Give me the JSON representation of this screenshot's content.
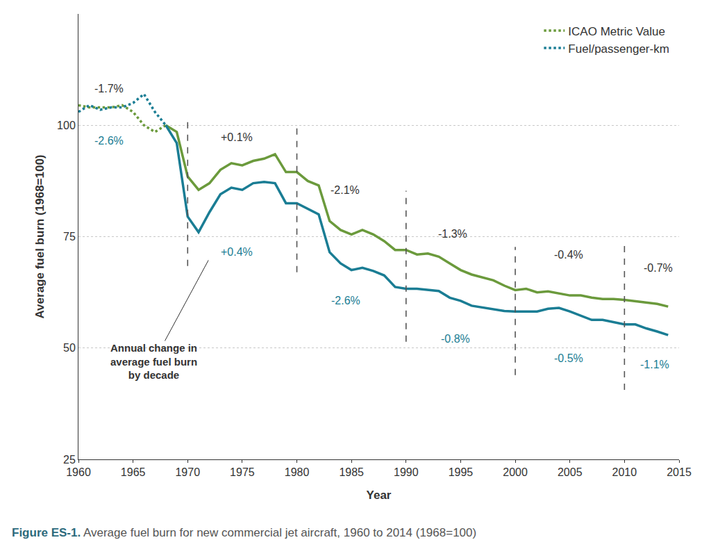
{
  "chart_data": {
    "type": "line",
    "title": "Figure ES-1. Average fuel burn for new commercial jet aircraft, 1960 to 2014 (1968=100)",
    "x_label": "Year",
    "y_label": "Average fuel burn (1968=100)",
    "x": [
      1960,
      1961,
      1962,
      1963,
      1964,
      1965,
      1966,
      1967,
      1968,
      1969,
      1970,
      1971,
      1972,
      1973,
      1974,
      1975,
      1976,
      1977,
      1978,
      1979,
      1980,
      1981,
      1982,
      1983,
      1984,
      1985,
      1986,
      1987,
      1988,
      1989,
      1990,
      1991,
      1992,
      1993,
      1994,
      1995,
      1996,
      1997,
      1998,
      1999,
      2000,
      2001,
      2002,
      2003,
      2004,
      2005,
      2006,
      2007,
      2008,
      2009,
      2010,
      2011,
      2012,
      2013,
      2014
    ],
    "series": [
      {
        "name": "ICAO Metric Value",
        "color": "#6b9a3c",
        "line_style": "dotted",
        "values": [
          104.5,
          104,
          104,
          104,
          104.5,
          103,
          100,
          98.5,
          100,
          null,
          null,
          null,
          null,
          null,
          null,
          null,
          null,
          null,
          null,
          null,
          null,
          null,
          null,
          null,
          null,
          null,
          null,
          null,
          null,
          null,
          null,
          null,
          null,
          null,
          null,
          null,
          null,
          null,
          null,
          null,
          null,
          null,
          null,
          null,
          null,
          null,
          null,
          null,
          null,
          null,
          null,
          null,
          null,
          null,
          null
        ]
      },
      {
        "name": "Fuel/passenger-km",
        "color": "#1a7d94",
        "line_style": "dotted",
        "values": [
          103,
          104.5,
          103.5,
          104,
          104,
          105,
          107,
          103,
          100,
          null,
          null,
          null,
          null,
          null,
          null,
          null,
          null,
          null,
          null,
          null,
          null,
          null,
          null,
          null,
          null,
          null,
          null,
          null,
          null,
          null,
          null,
          null,
          null,
          null,
          null,
          null,
          null,
          null,
          null,
          null,
          null,
          null,
          null,
          null,
          null,
          null,
          null,
          null,
          null,
          null,
          null,
          null,
          null,
          null,
          null
        ]
      },
      {
        "name": "ICAO Metric Value",
        "color": "#6b9a3c",
        "line_style": "solid",
        "values": [
          null,
          null,
          null,
          null,
          null,
          null,
          null,
          null,
          100,
          98.5,
          88.5,
          85.5,
          87,
          90,
          91.5,
          91,
          92,
          92.5,
          93.5,
          89.5,
          89.5,
          87.5,
          86.5,
          78.5,
          76.5,
          75.5,
          76.5,
          75.5,
          74,
          72,
          72,
          71,
          71.2,
          70.5,
          69,
          67.5,
          66.5,
          65.8,
          65.2,
          64,
          63,
          63.3,
          62.5,
          62.7,
          62.2,
          61.8,
          61.8,
          61.3,
          61,
          61,
          60.8,
          60.5,
          60.1,
          59.9,
          59.3
        ]
      },
      {
        "name": "Fuel/passenger-km",
        "color": "#1a7d94",
        "line_style": "solid",
        "values": [
          null,
          null,
          null,
          null,
          null,
          null,
          null,
          null,
          100,
          96,
          79.5,
          76,
          80.5,
          84.5,
          86,
          85.5,
          87,
          87.3,
          87,
          82.5,
          82.5,
          81.3,
          80,
          71.5,
          69,
          67.5,
          68,
          67.3,
          66.3,
          63.7,
          63.3,
          63.3,
          63,
          62.8,
          61.3,
          60.6,
          59.5,
          59.1,
          58.7,
          58.3,
          58.2,
          58.2,
          58.2,
          58.8,
          59,
          58.2,
          57.3,
          56.3,
          56.3,
          55.8,
          55.3,
          55.3,
          54.4,
          53.7,
          52.9
        ]
      }
    ],
    "xlim": [
      1960,
      2015
    ],
    "xticks": [
      1960,
      1965,
      1970,
      1975,
      1980,
      1985,
      1990,
      1995,
      2000,
      2005,
      2010,
      2015
    ],
    "ylim": [
      25,
      125
    ],
    "yticks": [
      25,
      50,
      75,
      100
    ],
    "grid": true,
    "legend": "upper right",
    "decade_lines": [
      {
        "x": 1970,
        "y0": 68.4,
        "y1": 102
      },
      {
        "x": 1980,
        "y0": 67,
        "y1": 100.6
      },
      {
        "x": 1990,
        "y0": 51.4,
        "y1": 85.3
      },
      {
        "x": 2000,
        "y0": 43.9,
        "y1": 72.7
      },
      {
        "x": 2010,
        "y0": 40.6,
        "y1": 74.2
      }
    ],
    "annotations": [
      {
        "text": "-1.7%",
        "x": 1962.8,
        "y": 108.3,
        "color": "#333333"
      },
      {
        "text": "-2.6%",
        "x": 1962.8,
        "y": 96.6,
        "color": "#1a7d94"
      },
      {
        "text": "+0.1%",
        "x": 1974.5,
        "y": 97.3,
        "color": "#333333"
      },
      {
        "text": "+0.4%",
        "x": 1974.5,
        "y": 71.6,
        "color": "#1a7d94"
      },
      {
        "text": "-2.1%",
        "x": 1984.4,
        "y": 85.5,
        "color": "#333333"
      },
      {
        "text": "-2.6%",
        "x": 1984.5,
        "y": 60.6,
        "color": "#1a7d94"
      },
      {
        "text": "-1.3%",
        "x": 1994.3,
        "y": 75.6,
        "color": "#333333"
      },
      {
        "text": "-0.8%",
        "x": 1994.5,
        "y": 52,
        "color": "#1a7d94"
      },
      {
        "text": "-0.4%",
        "x": 2004.9,
        "y": 70.9,
        "color": "#333333"
      },
      {
        "text": "-0.5%",
        "x": 2004.9,
        "y": 47.7,
        "color": "#1a7d94"
      },
      {
        "text": "-0.7%",
        "x": 2013.1,
        "y": 68,
        "color": "#333333"
      },
      {
        "text": "-1.1%",
        "x": 2012.8,
        "y": 46.3,
        "color": "#1a7d94"
      },
      {
        "text": "Annual change in average fuel burn by decade",
        "x": 1966.9,
        "y": 47,
        "arrow_x": 1971.9,
        "arrow_y": 69.7,
        "color": "#333333"
      }
    ]
  }
}
